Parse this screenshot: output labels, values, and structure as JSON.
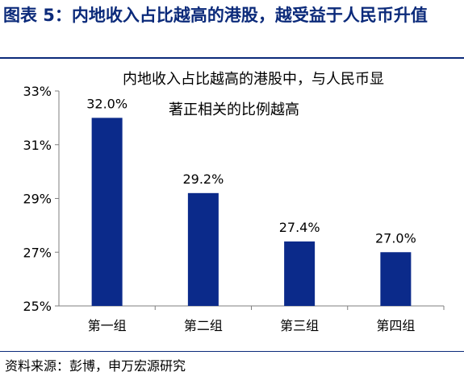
{
  "figure": {
    "title": "图表 5：内地收入占比越高的港股，越受益于人民币升值",
    "source": "资料来源：彭博，申万宏源研究"
  },
  "chart_data": {
    "type": "bar",
    "annotation": [
      "内地收入占比越高的港股中，与人民币显",
      "著正相关的比例越高"
    ],
    "categories": [
      "第一组",
      "第二组",
      "第三组",
      "第四组"
    ],
    "values": [
      32.0,
      29.2,
      27.4,
      27.0
    ],
    "value_labels": [
      "32.0%",
      "29.2%",
      "27.4%",
      "27.0%"
    ],
    "y_ticks": [
      25,
      27,
      29,
      31,
      33
    ],
    "y_tick_labels": [
      "25%",
      "27%",
      "29%",
      "31%",
      "33%"
    ],
    "ylim": [
      25,
      33
    ],
    "grid": false,
    "bar_color": "#0b2a8a",
    "title_color": "#0b2a7a"
  }
}
